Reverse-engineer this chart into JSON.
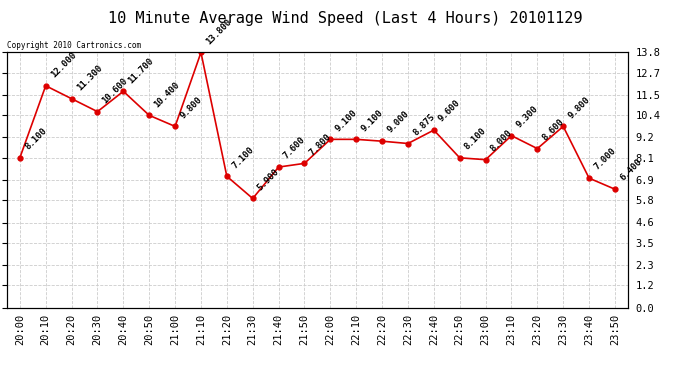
{
  "title": "10 Minute Average Wind Speed (Last 4 Hours) 20101129",
  "copyright_text": "Copyright 2010 Cartronics.com",
  "x_labels": [
    "20:00",
    "20:10",
    "20:20",
    "20:30",
    "20:40",
    "20:50",
    "21:00",
    "21:10",
    "21:20",
    "21:30",
    "21:40",
    "21:50",
    "22:00",
    "22:10",
    "22:20",
    "22:30",
    "22:40",
    "22:50",
    "23:00",
    "23:10",
    "23:20",
    "23:30",
    "23:40",
    "23:50"
  ],
  "y_values": [
    8.1,
    12.0,
    11.3,
    10.6,
    11.7,
    10.4,
    9.8,
    13.8,
    7.1,
    5.9,
    7.6,
    7.8,
    9.1,
    9.1,
    9.0,
    8.875,
    9.6,
    8.1,
    8.0,
    9.3,
    8.6,
    9.8,
    7.0,
    6.4
  ],
  "y_label_strs": [
    "8.100",
    "12.000",
    "11.300",
    "10.600",
    "11.700",
    "10.400",
    "9.800",
    "13.800",
    "7.100",
    "5.900",
    "7.600",
    "7.800",
    "9.100",
    "9.100",
    "9.000",
    "8.875",
    "9.600",
    "8.100",
    "8.000",
    "9.300",
    "8.600",
    "9.800",
    "7.000",
    "6.400"
  ],
  "line_color": "#dd0000",
  "marker_color": "#dd0000",
  "bg_color": "#ffffff",
  "plot_bg_color": "#ffffff",
  "grid_color": "#cccccc",
  "ylim": [
    0.0,
    13.8
  ],
  "yticks": [
    0.0,
    1.2,
    2.3,
    3.5,
    4.6,
    5.8,
    6.9,
    8.1,
    9.2,
    10.4,
    11.5,
    12.7,
    13.8
  ],
  "ytick_labels": [
    "0.0",
    "1.2",
    "2.3",
    "3.5",
    "4.6",
    "5.8",
    "6.9",
    "8.1",
    "9.2",
    "10.4",
    "11.5",
    "12.7",
    "13.8"
  ],
  "title_fontsize": 11,
  "label_fontsize": 6.5,
  "tick_fontsize": 7.5
}
